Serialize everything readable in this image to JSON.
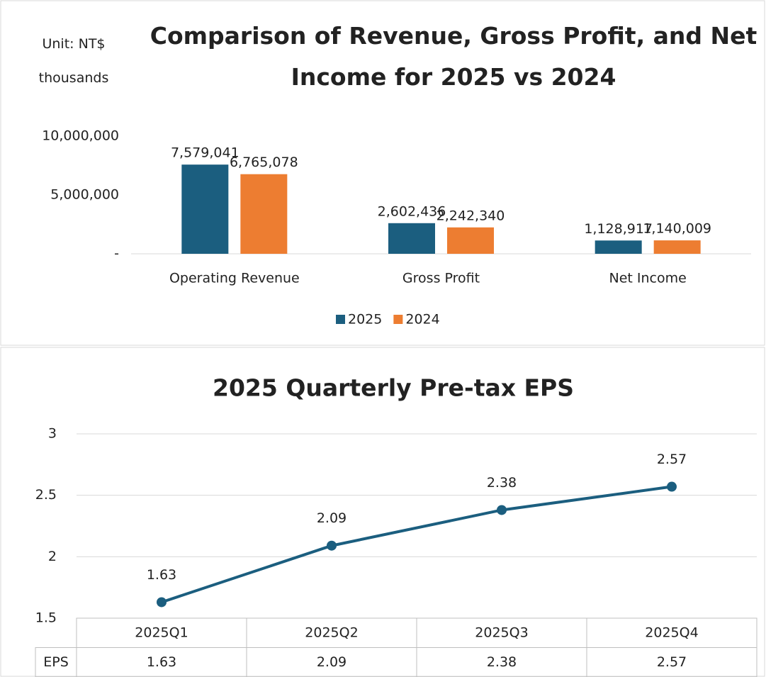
{
  "chart_data": [
    {
      "type": "bar",
      "title": "Comparison of Revenue, Gross Profit, and Net Income for 2025 vs 2024",
      "unit_label": "Unit: NT$ thousands",
      "categories": [
        "Operating Revenue",
        "Gross Profit",
        "Net Income"
      ],
      "series": [
        {
          "name": "2025",
          "color": "#1b5e7f",
          "values": [
            7579041,
            2602436,
            1128917
          ],
          "value_labels": [
            "7,579,041",
            "2,602,436",
            "1,128,917"
          ]
        },
        {
          "name": "2024",
          "color": "#ed7d31",
          "values": [
            6765078,
            2242340,
            1140009
          ],
          "value_labels": [
            "6,765,078",
            "2,242,340",
            "1,140,009"
          ]
        }
      ],
      "ylim": [
        0,
        10000000
      ],
      "yticks": [
        {
          "value": 0,
          "label": "-"
        },
        {
          "value": 5000000,
          "label": "5,000,000"
        },
        {
          "value": 10000000,
          "label": "10,000,000"
        }
      ],
      "grid": false,
      "legend": "bottom"
    },
    {
      "type": "line",
      "title": "2025 Quarterly Pre-tax EPS",
      "categories": [
        "2025Q1",
        "2025Q2",
        "2025Q3",
        "2025Q4"
      ],
      "series": [
        {
          "name": "EPS",
          "color": "#1b5e7f",
          "values": [
            1.63,
            2.09,
            2.38,
            2.57
          ]
        }
      ],
      "ylim": [
        1.5,
        3
      ],
      "yticks": [
        1.5,
        2,
        2.5,
        3
      ],
      "grid": true,
      "data_table": true
    }
  ]
}
